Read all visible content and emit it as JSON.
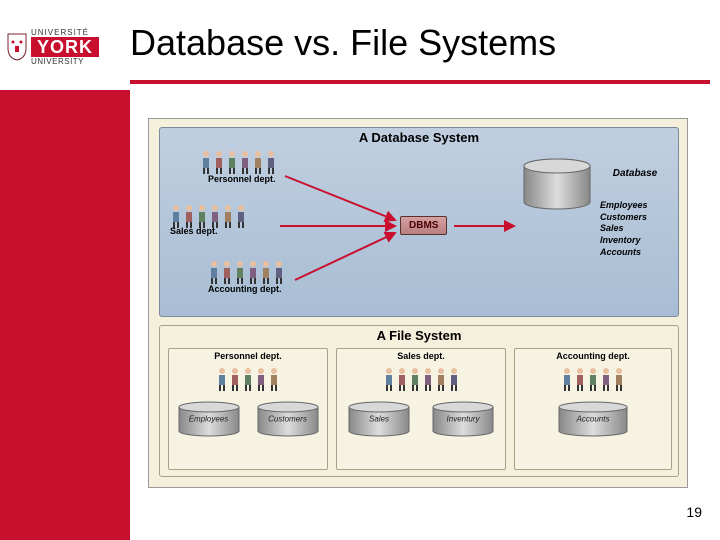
{
  "title": "Database vs. File Systems",
  "logo": {
    "universite": "UNIVERSITÉ",
    "york": "YORK",
    "university": "UNIVERSITY"
  },
  "page_number": "19",
  "colors": {
    "york_red": "#c8102e",
    "panel_bg_top": "#c0cfe0",
    "panel_bg_bot": "#a8bdd4",
    "diagram_bg": "#f5f0dc",
    "dbms_bg": "#c89898",
    "arrow_red": "#c8102e"
  },
  "db_system": {
    "title": "A Database System",
    "depts": [
      {
        "name": "Personnel dept.",
        "people": 6
      },
      {
        "name": "Sales dept.",
        "people": 6
      },
      {
        "name": "Accounting dept.",
        "people": 6
      }
    ],
    "dbms_label": "DBMS",
    "database_label": "Database",
    "tables": [
      "Employees",
      "Customers",
      "Sales",
      "Inventory",
      "Accounts"
    ]
  },
  "file_system": {
    "title": "A File System",
    "depts": [
      {
        "name": "Personnel dept.",
        "people": 5,
        "files": [
          "Employees",
          "Customers"
        ]
      },
      {
        "name": "Sales dept.",
        "people": 6,
        "files": [
          "Sales",
          "Inventury"
        ]
      },
      {
        "name": "Accounting dept.",
        "people": 5,
        "files": [
          "Accounts"
        ]
      }
    ]
  }
}
